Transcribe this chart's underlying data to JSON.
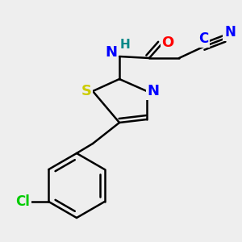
{
  "bg_color": "#eeeeee",
  "atom_colors": {
    "C": "#000000",
    "N": "#0000ff",
    "O": "#ff0000",
    "S": "#cccc00",
    "Cl": "#00cc00",
    "H": "#008888"
  },
  "bond_color": "#000000",
  "bond_width": 1.8,
  "font_size": 13
}
